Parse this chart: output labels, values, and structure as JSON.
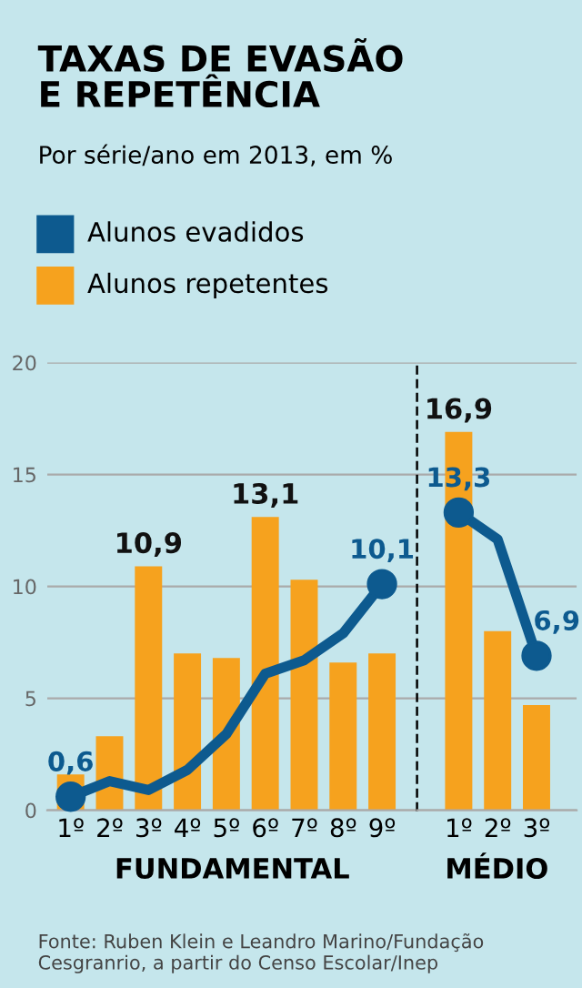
{
  "chart_data": [
    {
      "type": "bar",
      "title": "TAXAS DE EVASÃO\nE REPETÊNCIA",
      "subtitle": "Por série/ano em 2013, em %",
      "xlabel": "FUNDAMENTAL",
      "categories": [
        "1º",
        "2º",
        "3º",
        "4º",
        "5º",
        "6º",
        "7º",
        "8º",
        "9º"
      ],
      "series": [
        {
          "name": "Alunos evadidos",
          "type": "line",
          "color": "#0d5a8f",
          "values": [
            0.6,
            1.3,
            0.9,
            1.8,
            3.4,
            6.1,
            6.7,
            7.9,
            10.1
          ],
          "value_labels": [
            "0,6",
            null,
            null,
            null,
            null,
            null,
            null,
            null,
            "10,1"
          ]
        },
        {
          "name": "Alunos repetentes",
          "color": "#f6a21e",
          "values": [
            1.6,
            3.3,
            10.9,
            7.0,
            6.8,
            13.1,
            10.3,
            6.6,
            7.0
          ],
          "value_labels": [
            null,
            null,
            "10,9",
            null,
            null,
            "13,1",
            null,
            null,
            null
          ]
        }
      ],
      "ylim": [
        0,
        20
      ],
      "yticks": [
        0,
        5,
        10,
        15,
        20
      ],
      "grid": "y",
      "legend": "top left",
      "annotations": [
        "Fonte: Ruben Klein e Leandro Marino/Fundação Cesgranrio, a partir do Censo Escolar/Inep"
      ]
    },
    {
      "type": "bar",
      "xlabel": "MÉDIO",
      "categories": [
        "1º",
        "2º",
        "3º"
      ],
      "series": [
        {
          "type": "line",
          "color": "#0d5a8f",
          "values": [
            13.3,
            12.1,
            6.9
          ],
          "value_labels": [
            "13,3",
            null,
            "6,9"
          ]
        },
        {
          "color": "#f6a21e",
          "values": [
            16.9,
            8.0,
            4.7
          ],
          "value_labels": [
            "16,9",
            null,
            null
          ]
        }
      ],
      "ylim": [
        0,
        20
      ],
      "yticks": [
        0,
        5,
        10,
        15,
        20
      ],
      "grid": "y",
      "tick_labels": "x"
    }
  ]
}
